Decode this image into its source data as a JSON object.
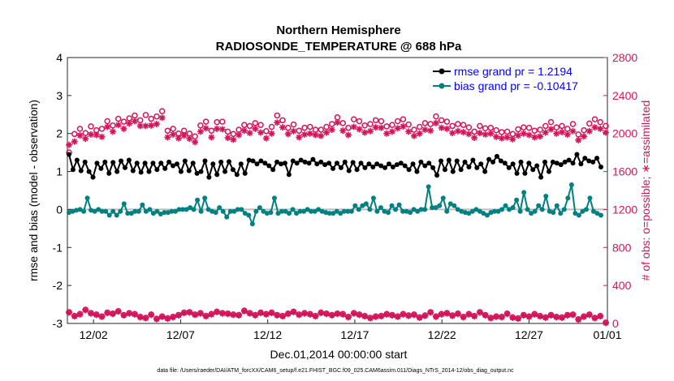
{
  "chart_data": {
    "type": "line",
    "title": "Northern Hemisphere",
    "subtitle": "RADIOSONDE_TEMPERATURE @ 688 hPa",
    "xlabel": "Dec.01,2014 00:00:00 start",
    "ylabel_left": "rmse and bias (model - observation)",
    "ylabel_right": "# of obs: o=possible; ∗=assimilated",
    "footnote": "data file: /Users/raeder/DAI/ATM_forcXX/CAM6_setup/f.e21.FHIST_BGC.f09_025.CAM6assim.011/Diags_NTrS_2014-12/obs_diag_output.nc",
    "colors": {
      "rmse": "#000000",
      "bias": "#008080",
      "obs": "#d4145a",
      "zero": "#bdbdbd",
      "legend_text": "#0000ff"
    },
    "x_range": [
      0.5,
      31.5
    ],
    "x_ticks": [
      2,
      7,
      12,
      17,
      22,
      27,
      32
    ],
    "x_tick_labels": [
      "12/02",
      "12/07",
      "12/12",
      "12/17",
      "12/22",
      "12/27",
      "01/01"
    ],
    "ylim_left": [
      -3,
      4
    ],
    "y_ticks_left": [
      -3,
      -2,
      -1,
      0,
      1,
      2,
      3,
      4
    ],
    "y_tick_labels_left": [
      "-3",
      "-2",
      "-1",
      "0",
      "1",
      "2",
      "3",
      "4"
    ],
    "ylim_right": [
      0,
      2800
    ],
    "y_ticks_right": [
      0,
      400,
      800,
      1200,
      1600,
      2000,
      2400,
      2800
    ],
    "y_tick_labels_right": [
      "0",
      "400",
      "800",
      "1200",
      "1600",
      "2000",
      "2400",
      "2800"
    ],
    "x_start": 0.5,
    "x_step": 0.25,
    "rmse_values": [
      1.45,
      1.05,
      1.3,
      1.02,
      1.25,
      1.0,
      0.85,
      1.22,
      1.08,
      1.25,
      0.95,
      1.24,
      1.0,
      1.28,
      1.1,
      1.3,
      1.02,
      1.22,
      0.98,
      1.22,
      1.0,
      1.22,
      1.05,
      1.22,
      1.08,
      1.25,
      1.15,
      1.2,
      1.0,
      1.28,
      1.02,
      1.22,
      0.95,
      1.0,
      1.28,
      0.85,
      1.2,
      0.92,
      1.25,
      1.0,
      1.26,
      1.05,
      0.92,
      1.2,
      0.95,
      1.3,
      1.28,
      1.2,
      1.28,
      1.22,
      1.15,
      1.05,
      1.25,
      1.2,
      1.22,
      0.92,
      1.28,
      1.22,
      1.3,
      1.25,
      1.22,
      1.32,
      1.2,
      1.25,
      1.18,
      1.22,
      1.08,
      1.22,
      1.1,
      1.25,
      1.02,
      1.24,
      1.05,
      1.22,
      1.1,
      1.2,
      1.12,
      1.2,
      1.15,
      1.1,
      1.2,
      1.12,
      1.18,
      1.22,
      1.15,
      1.05,
      1.2,
      1.0,
      1.25,
      1.15,
      1.22,
      1.1,
      0.9,
      1.28,
      1.05,
      1.3,
      1.0,
      1.28,
      1.05,
      1.25,
      1.12,
      1.3,
      1.1,
      1.2,
      1.0,
      1.32,
      1.25,
      1.4,
      1.28,
      1.22,
      1.1,
      1.2,
      0.95,
      1.25,
      0.95,
      1.22,
      1.05,
      1.15,
      0.85,
      1.25,
      1.0,
      1.25,
      1.22,
      1.18,
      1.25,
      1.3,
      1.22,
      1.45,
      1.2,
      1.35,
      1.28,
      1.25,
      1.35,
      1.12
    ],
    "bias_values": [
      -0.08,
      -0.05,
      -0.02,
      0.0,
      -0.05,
      0.3,
      -0.02,
      -0.05,
      0.0,
      -0.05,
      -0.05,
      -0.15,
      -0.05,
      -0.15,
      -0.05,
      0.15,
      -0.1,
      -0.1,
      -0.05,
      -0.05,
      0.12,
      -0.05,
      0.0,
      -0.1,
      -0.05,
      -0.12,
      -0.08,
      -0.08,
      -0.05,
      -0.05,
      0.0,
      0.0,
      0.0,
      0.05,
      0.0,
      0.25,
      -0.05,
      0.3,
      0.0,
      -0.05,
      -0.08,
      0.05,
      -0.05,
      -0.2,
      -0.05,
      -0.05,
      0.0,
      0.0,
      -0.1,
      -0.15,
      -0.38,
      -0.05,
      0.05,
      -0.05,
      -0.1,
      -0.08,
      0.3,
      -0.1,
      -0.05,
      -0.05,
      -0.1,
      0.0,
      -0.1,
      -0.05,
      -0.05,
      0.0,
      -0.05,
      -0.05,
      0.0,
      -0.05,
      -0.08,
      -0.1,
      -0.1,
      -0.05,
      -0.1,
      -0.05,
      -0.05,
      -0.05,
      0.1,
      0.0,
      0.1,
      0.15,
      0.0,
      0.3,
      -0.05,
      0.05,
      -0.05,
      -0.08,
      0.1,
      0.0,
      0.12,
      -0.05,
      -0.05,
      -0.08,
      0.0,
      -0.05,
      0.0,
      0.0,
      0.6,
      0.05,
      0.05,
      0.1,
      0.3,
      -0.05,
      0.15,
      0.1,
      0.0,
      -0.05,
      -0.08,
      -0.1,
      -0.05,
      0.0,
      -0.05,
      -0.1,
      -0.15,
      -0.08,
      -0.05,
      -0.05,
      0.0,
      0.1,
      0.0,
      0.05,
      0.25,
      -0.05,
      0.45,
      0.0,
      -0.1,
      -0.05,
      0.1,
      0.0,
      0.35,
      -0.05,
      -0.08,
      0.1,
      -0.1,
      0.0,
      0.3,
      0.65,
      -0.1,
      -0.15,
      -0.05,
      0.0,
      0.3,
      -0.05,
      -0.1,
      -0.15
    ],
    "obs_possible": [
      1800,
      1995,
      2050,
      2005,
      2075,
      2035,
      2050,
      2130,
      2085,
      2155,
      2125,
      2160,
      2190,
      2140,
      2195,
      2155,
      2180,
      2235,
      2030,
      2050,
      2000,
      2030,
      2000,
      1970,
      2085,
      2125,
      2030,
      2120,
      2125,
      2020,
      1995,
      2040,
      2090,
      2080,
      2110,
      2090,
      2025,
      2070,
      2190,
      2140,
      2060,
      2095,
      2030,
      2060,
      2070,
      2040,
      2040,
      2070,
      2100,
      2170,
      2110,
      2060,
      2150,
      2130,
      2085,
      2100,
      2140,
      2130,
      2075,
      2090,
      2130,
      2150,
      2095,
      2040,
      2070,
      2110,
      2100,
      2180,
      2140,
      2125,
      2080,
      2100,
      2090,
      2065,
      2020,
      2080,
      2055,
      2060,
      2035,
      2015,
      2020,
      1995,
      2045,
      2065,
      2060,
      2030,
      2040,
      2080,
      2120,
      2065,
      2080,
      2050,
      2100,
      1990,
      2035,
      2105,
      2150,
      2120,
      2080
    ],
    "obs_assimilated": [
      1880,
      1915,
      1980,
      1945,
      1990,
      1985,
      1965,
      2070,
      2020,
      2090,
      2050,
      2105,
      2130,
      2080,
      2080,
      2085,
      2100,
      2165,
      1960,
      1990,
      1950,
      1980,
      1945,
      1910,
      2020,
      2055,
      1960,
      2050,
      2045,
      1955,
      1935,
      1985,
      2030,
      2005,
      2050,
      2010,
      1950,
      2000,
      2115,
      2065,
      1995,
      2025,
      1960,
      1990,
      2000,
      1985,
      1975,
      2010,
      2040,
      2115,
      2030,
      1985,
      2070,
      2045,
      2010,
      2025,
      2065,
      2060,
      2000,
      2020,
      2055,
      2075,
      2020,
      1975,
      2000,
      2040,
      2030,
      2110,
      2060,
      2050,
      2005,
      2025,
      2015,
      1995,
      1955,
      2005,
      1990,
      2000,
      1965,
      1950,
      1960,
      1940,
      1980,
      2000,
      1985,
      1960,
      1970,
      2010,
      2045,
      2000,
      2015,
      1990,
      2025,
      1930,
      1970,
      2025,
      2065,
      2050,
      2010
    ],
    "obs_assimilated_low": [
      115,
      75,
      95,
      140,
      105,
      90,
      70,
      110,
      100,
      125,
      85,
      105,
      95,
      65,
      55,
      90,
      45,
      70,
      50,
      65,
      85,
      110,
      115,
      90,
      105,
      75,
      95,
      120,
      105,
      100,
      90,
      85,
      130,
      105,
      85,
      110,
      95,
      110,
      85,
      75,
      100,
      120,
      90,
      105,
      95,
      75,
      110,
      100,
      85,
      100,
      95,
      65,
      105,
      90,
      75,
      55,
      70,
      75,
      95,
      85,
      70,
      95,
      80,
      90,
      60,
      80,
      115,
      70,
      95,
      105,
      80,
      100,
      65,
      95,
      75,
      115,
      85,
      55,
      70,
      65,
      100,
      60,
      50,
      85,
      70,
      95,
      75,
      60,
      85,
      65,
      60,
      85,
      90,
      40,
      70,
      90,
      55,
      75,
      5
    ],
    "obs_possible_low": [
      120,
      80,
      100,
      145,
      110,
      95,
      75,
      115,
      105,
      130,
      90,
      110,
      100,
      70,
      60,
      95,
      50,
      75,
      55,
      70,
      90,
      115,
      120,
      95,
      110,
      80,
      100,
      125,
      110,
      105,
      95,
      90,
      135,
      110,
      90,
      115,
      100,
      115,
      90,
      80,
      105,
      125,
      95,
      110,
      100,
      80,
      115,
      105,
      90,
      105,
      100,
      70,
      110,
      95,
      80,
      60,
      75,
      80,
      100,
      90,
      75,
      100,
      85,
      95,
      65,
      85,
      120,
      75,
      100,
      110,
      85,
      105,
      70,
      100,
      80,
      120,
      90,
      60,
      75,
      70,
      105,
      65,
      55,
      90,
      75,
      100,
      80,
      65,
      90,
      70,
      65,
      90,
      95,
      45,
      75,
      95,
      60,
      80,
      10
    ],
    "legend": [
      {
        "label": "rmse grand pr = 1.2194",
        "series": "rmse"
      },
      {
        "label": "bias grand pr = -0.10417",
        "series": "bias"
      }
    ]
  }
}
